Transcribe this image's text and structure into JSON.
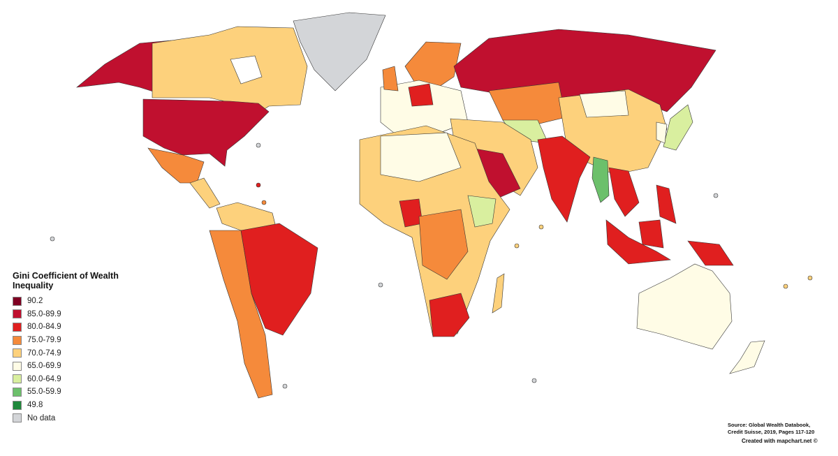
{
  "legend": {
    "title": "Gini Coefficient of Wealth Inequality",
    "items": [
      {
        "label": "90.2",
        "color": "#7f0022"
      },
      {
        "label": "85.0-89.9",
        "color": "#c0102f"
      },
      {
        "label": "80.0-84.9",
        "color": "#e01f1f"
      },
      {
        "label": "75.0-79.9",
        "color": "#f58a3b"
      },
      {
        "label": "70.0-74.9",
        "color": "#fdd17c"
      },
      {
        "label": "65.0-69.9",
        "color": "#fffce6"
      },
      {
        "label": "60.0-64.9",
        "color": "#d9ef9f"
      },
      {
        "label": "55.0-59.9",
        "color": "#6cc06b"
      },
      {
        "label": "49.8",
        "color": "#1f883b"
      },
      {
        "label": "No data",
        "color": "#d3d5d8"
      }
    ]
  },
  "source": "Source: Global Wealth Databook, Credit Suisse, 2019, Pages 117-120",
  "credit": "Created with mapchart.net ©"
}
